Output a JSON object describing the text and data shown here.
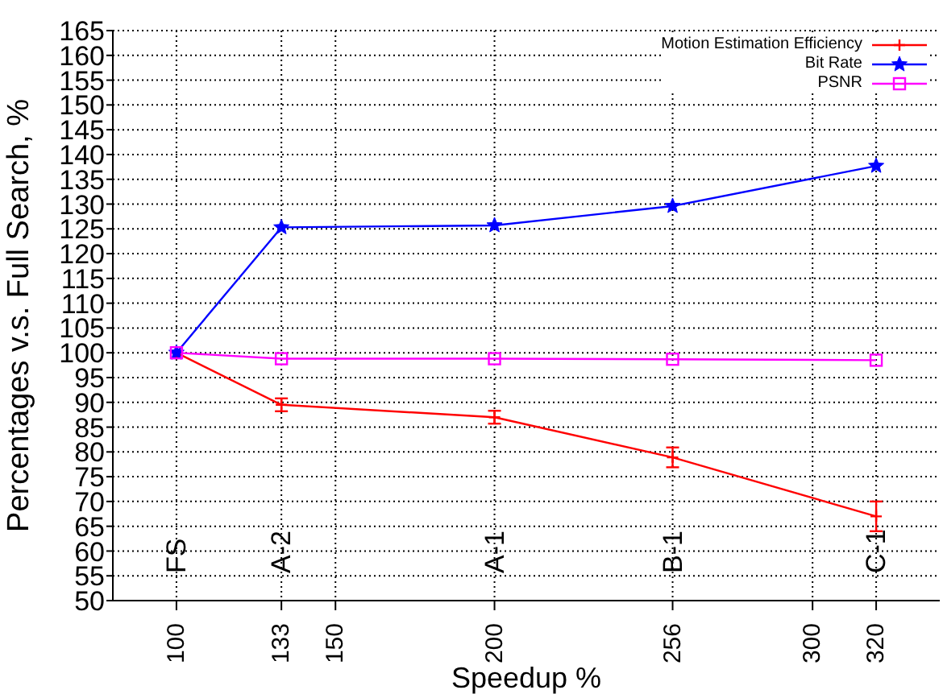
{
  "chart_data": {
    "type": "line",
    "xlabel": "Speedup %",
    "ylabel": "Percentages v.s. Full Search, %",
    "xlim": [
      80,
      340
    ],
    "xticks": [
      100,
      133,
      150,
      200,
      256,
      300,
      320
    ],
    "ylim": [
      50,
      165
    ],
    "yticks": [
      50,
      55,
      60,
      65,
      70,
      75,
      80,
      85,
      90,
      95,
      100,
      105,
      110,
      115,
      120,
      125,
      130,
      135,
      140,
      145,
      150,
      155,
      160,
      165
    ],
    "grid": true,
    "legend": "top right",
    "series": [
      {
        "name": "Motion Estimation Efficiency",
        "color": "#ff0000",
        "marker": "cross",
        "x": [
          100,
          133,
          200,
          256,
          320
        ],
        "values": [
          100,
          89.5,
          87,
          78.9,
          67
        ],
        "errors": [
          null,
          1.3,
          1.3,
          2,
          3
        ]
      },
      {
        "name": "Bit Rate",
        "color": "#0000ff",
        "marker": "star",
        "x": [
          100,
          133,
          200,
          256,
          320
        ],
        "values": [
          100,
          125.3,
          125.7,
          129.6,
          137.7
        ]
      },
      {
        "name": "PSNR",
        "color": "#ff00ff",
        "marker": "square",
        "x": [
          100,
          133,
          200,
          256,
          320
        ],
        "values": [
          100,
          98.8,
          98.8,
          98.7,
          98.5
        ]
      }
    ],
    "annotations": [
      "FS",
      "A-2",
      "A-1",
      "B-1",
      "C-1"
    ]
  }
}
